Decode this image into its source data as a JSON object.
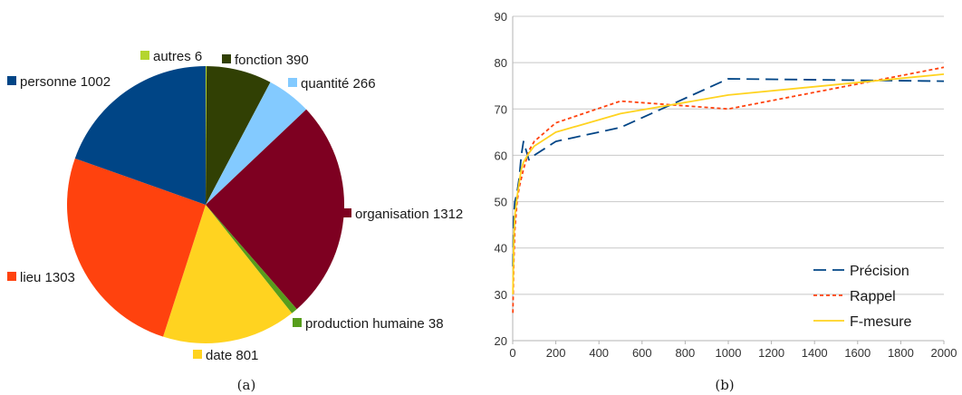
{
  "chart_data": [
    {
      "type": "pie",
      "caption": "(a)",
      "slices": [
        {
          "label": "autres 6",
          "value": 6,
          "color": "#b4d52f"
        },
        {
          "label": "fonction 390",
          "value": 390,
          "color": "#314004"
        },
        {
          "label": "quantité 266",
          "value": 266,
          "color": "#83caff"
        },
        {
          "label": "organisation 1312",
          "value": 1312,
          "color": "#7e0021"
        },
        {
          "label": "production humaine 38",
          "value": 38,
          "color": "#579d1c"
        },
        {
          "label": "date 801",
          "value": 801,
          "color": "#ffd320"
        },
        {
          "label": "lieu 1303",
          "value": 1303,
          "color": "#ff420e"
        },
        {
          "label": "personne 1002",
          "value": 1002,
          "color": "#004586"
        }
      ]
    },
    {
      "type": "line",
      "caption": "(b)",
      "xlim": [
        0,
        2000
      ],
      "ylim": [
        20,
        90
      ],
      "xticks": [
        0,
        200,
        400,
        600,
        800,
        1000,
        1200,
        1400,
        1600,
        1800,
        2000
      ],
      "yticks": [
        20,
        30,
        40,
        50,
        60,
        70,
        80,
        90
      ],
      "grid": "horizontal",
      "legend": "bottom-right",
      "series": [
        {
          "name": "Précision",
          "color": "#004586",
          "style": "dashed",
          "x": [
            1,
            5,
            10,
            20,
            30,
            40,
            50,
            75,
            100,
            200,
            500,
            1000,
            2000
          ],
          "y": [
            36,
            47,
            50,
            52,
            55,
            60,
            63,
            59,
            60,
            63,
            66,
            76.5,
            76
          ]
        },
        {
          "name": "Rappel",
          "color": "#ff420e",
          "style": "dotted",
          "x": [
            1,
            5,
            10,
            20,
            30,
            40,
            50,
            75,
            100,
            200,
            500,
            1000,
            2000
          ],
          "y": [
            26,
            37,
            44,
            50,
            53,
            55,
            57,
            61,
            63,
            67,
            71.7,
            70,
            79
          ]
        },
        {
          "name": "F-mesure",
          "color": "#ffd320",
          "style": "solid",
          "x": [
            1,
            5,
            10,
            20,
            30,
            40,
            50,
            75,
            100,
            200,
            500,
            1000,
            2000
          ],
          "y": [
            30,
            42,
            47,
            51,
            54,
            57,
            58.5,
            60.5,
            62,
            65,
            69,
            73,
            77.5
          ]
        }
      ]
    }
  ]
}
